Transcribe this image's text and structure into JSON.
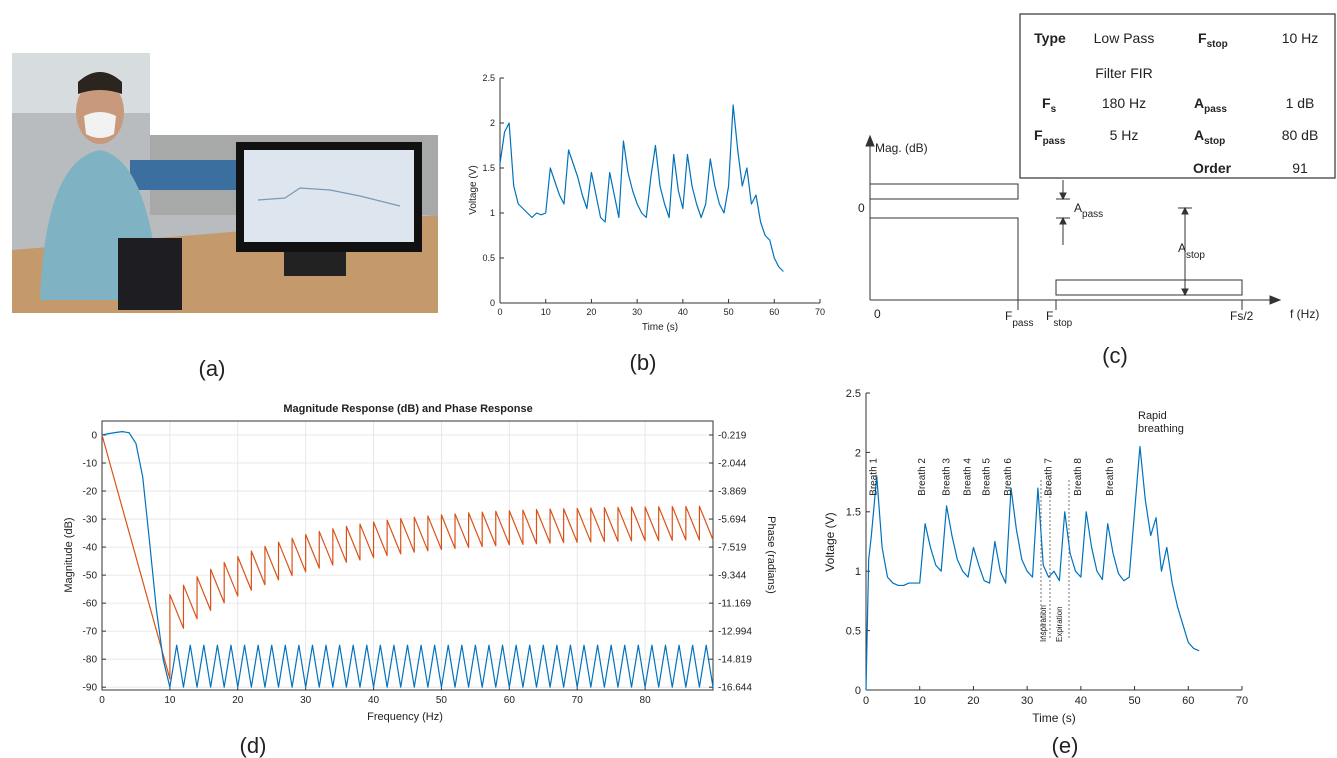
{
  "panel_labels": [
    "(a)",
    "(b)",
    "(c)",
    "(d)",
    "(e)"
  ],
  "filter_diagram": {
    "y_axis_label": "Mag. (dB)",
    "y_zero": "0",
    "x_zero": "0",
    "f_pass": {
      "text": "F",
      "sub": "pass"
    },
    "f_stop": {
      "text": "F",
      "sub": "stop"
    },
    "fs_half": "Fs/2",
    "x_axis_label": "f (Hz)",
    "a_pass": {
      "text": "A",
      "sub": "pass"
    },
    "a_stop": {
      "text": "A",
      "sub": "stop"
    }
  },
  "filter_table": [
    {
      "label": {
        "text": "Type"
      },
      "value": [
        "Low Pass",
        "Filter FIR"
      ],
      "label2": {
        "text": "F",
        "sub": "stop"
      },
      "value2": "10 Hz"
    },
    {
      "label": {
        "text": "F",
        "sub": "s"
      },
      "value": "180 Hz",
      "label2": {
        "text": "A",
        "sub": "pass"
      },
      "value2": "1 dB"
    },
    {
      "label": {
        "text": "F",
        "sub": "pass"
      },
      "value": "5 Hz",
      "label2": {
        "text": "A",
        "sub": "stop"
      },
      "value2": "80 dB"
    },
    {
      "label2": {
        "text": "Order"
      },
      "value2": "91"
    }
  ],
  "chart_data": [
    {
      "type": "line",
      "xlabel": "Time (s)",
      "ylabel": "Voltage (V)",
      "x": [
        0,
        1,
        2,
        3,
        4,
        5,
        6,
        7,
        8,
        9,
        10,
        11,
        12,
        13,
        14,
        15,
        16,
        17,
        18,
        19,
        20,
        21,
        22,
        23,
        24,
        25,
        26,
        27,
        28,
        29,
        30,
        31,
        32,
        33,
        34,
        35,
        36,
        37,
        38,
        39,
        40,
        41,
        42,
        43,
        44,
        45,
        46,
        47,
        48,
        49,
        50,
        51,
        52,
        53,
        54,
        55,
        56,
        57,
        58,
        59,
        60,
        61,
        62
      ],
      "series": [
        {
          "color": "#0072BD",
          "values": [
            1.55,
            1.9,
            2.0,
            1.3,
            1.1,
            1.05,
            1.0,
            0.95,
            1.0,
            0.98,
            1.0,
            1.5,
            1.35,
            1.2,
            1.1,
            1.7,
            1.55,
            1.4,
            1.2,
            1.05,
            1.45,
            1.2,
            0.95,
            0.9,
            1.45,
            1.2,
            0.95,
            1.8,
            1.45,
            1.25,
            1.1,
            1.0,
            0.95,
            1.4,
            1.75,
            1.3,
            1.1,
            0.95,
            1.65,
            1.25,
            1.05,
            1.65,
            1.3,
            1.1,
            0.95,
            1.1,
            1.6,
            1.3,
            1.1,
            1.0,
            1.3,
            2.2,
            1.7,
            1.3,
            1.5,
            1.1,
            1.2,
            0.9,
            0.75,
            0.7,
            0.5,
            0.4,
            0.35
          ]
        }
      ],
      "xlim": [
        0,
        70
      ],
      "ylim": [
        0,
        2.5
      ],
      "xticks": [
        0,
        10,
        20,
        30,
        40,
        50,
        60,
        70
      ],
      "yticks": [
        0,
        0.5,
        1,
        1.5,
        2,
        2.5
      ],
      "grid": false,
      "box": false
    },
    {
      "type": "line",
      "title": "Magnitude Response (dB) and Phase Response",
      "xlabel": "Frequency (Hz)",
      "ylabel": "Magnitude (dB)",
      "y2label": "Phase (radians)",
      "series": [
        {
          "color": "#D95319",
          "axis": "y2",
          "x": [
            0,
            10,
            10,
            12,
            12,
            14,
            14,
            16,
            16,
            18,
            18,
            20,
            20,
            22,
            22,
            24,
            24,
            26,
            26,
            28,
            28,
            30,
            30,
            32,
            32,
            34,
            34,
            36,
            36,
            38,
            38,
            40,
            40,
            42,
            42,
            44,
            44,
            46,
            46,
            48,
            48,
            50,
            50,
            52,
            52,
            54,
            54,
            56,
            56,
            58,
            58,
            60,
            60,
            62,
            62,
            64,
            64,
            66,
            66,
            68,
            68,
            70,
            70,
            72,
            72,
            74,
            74,
            76,
            76,
            78,
            78,
            80,
            80,
            82,
            82,
            84,
            84,
            86,
            86,
            88,
            88,
            90
          ],
          "values": [
            -0.219,
            -16.1,
            -10.62,
            -12.81,
            -10.0,
            -12.19,
            -9.45,
            -11.64,
            -8.96,
            -11.15,
            -8.52,
            -10.71,
            -8.14,
            -10.33,
            -7.78,
            -9.97,
            -7.47,
            -9.66,
            -7.19,
            -9.38,
            -6.94,
            -9.13,
            -6.7,
            -8.89,
            -6.5,
            -8.69,
            -6.32,
            -8.51,
            -6.17,
            -8.36,
            -6.02,
            -8.21,
            -5.88,
            -8.07,
            -5.77,
            -7.96,
            -5.66,
            -7.85,
            -5.57,
            -7.76,
            -5.49,
            -7.68,
            -5.42,
            -7.61,
            -5.35,
            -7.54,
            -5.29,
            -7.48,
            -5.24,
            -7.43,
            -5.18,
            -7.37,
            -5.15,
            -7.34,
            -5.11,
            -7.3,
            -5.07,
            -7.26,
            -5.04,
            -7.23,
            -5.02,
            -7.21,
            -5.0,
            -7.19,
            -4.97,
            -7.16,
            -4.95,
            -7.14,
            -4.93,
            -7.12,
            -4.91,
            -7.1,
            -4.91,
            -7.1,
            -4.89,
            -7.08,
            -4.87,
            -7.06,
            -4.87,
            -7.06,
            -4.86,
            -7.05
          ]
        },
        {
          "color": "#0072BD",
          "x": [
            0,
            1,
            2,
            3,
            4,
            5,
            6,
            7,
            8,
            9,
            10,
            11,
            12,
            13,
            14,
            15,
            16,
            17,
            18,
            19,
            20,
            21,
            22,
            23,
            24,
            25,
            26,
            27,
            28,
            29,
            30,
            31,
            32,
            33,
            34,
            35,
            36,
            37,
            38,
            39,
            40,
            41,
            42,
            43,
            44,
            45,
            46,
            47,
            48,
            49,
            50,
            51,
            52,
            53,
            54,
            55,
            56,
            57,
            58,
            59,
            60,
            61,
            62,
            63,
            64,
            65,
            66,
            67,
            68,
            69,
            70,
            71,
            72,
            73,
            74,
            75,
            76,
            77,
            78,
            79,
            80,
            81,
            82,
            83,
            84,
            85,
            86,
            87,
            88,
            89,
            90
          ],
          "values": [
            0,
            0.5,
            0.9,
            1.2,
            0.8,
            -3,
            -15,
            -38,
            -62,
            -80,
            -90,
            -75,
            -90,
            -75,
            -90,
            -75,
            -90,
            -75,
            -90,
            -75,
            -90,
            -75,
            -90,
            -75,
            -90,
            -75,
            -90,
            -75,
            -90,
            -75,
            -90,
            -75,
            -90,
            -75,
            -90,
            -75,
            -90,
            -75,
            -90,
            -75,
            -90,
            -75,
            -90,
            -75,
            -90,
            -75,
            -90,
            -75,
            -90,
            -75,
            -90,
            -75,
            -90,
            -75,
            -90,
            -75,
            -90,
            -75,
            -90,
            -75,
            -90,
            -75,
            -90,
            -75,
            -90,
            -75,
            -90,
            -75,
            -90,
            -75,
            -90,
            -75,
            -90,
            -75,
            -90,
            -75,
            -90,
            -75,
            -90,
            -75,
            -90,
            -75,
            -90,
            -75,
            -90,
            -75,
            -90,
            -75,
            -90,
            -75,
            -90
          ]
        }
      ],
      "xlim": [
        0,
        90
      ],
      "ylim": [
        -91,
        5
      ],
      "y2lim": [
        -16.827,
        0.6935
      ],
      "xticks": [
        0,
        10,
        20,
        30,
        40,
        50,
        60,
        70,
        80
      ],
      "yticks": [
        0,
        -10,
        -20,
        -30,
        -40,
        -50,
        -60,
        -70,
        -80,
        -90
      ],
      "y2ticks": [
        -0.219,
        -2.044,
        -3.869,
        -5.694,
        -7.519,
        -9.344,
        -11.169,
        -12.994,
        -14.819,
        -16.644
      ],
      "grid": true,
      "box": true
    },
    {
      "type": "line",
      "xlabel": "Time (s)",
      "ylabel": "Voltage (V)",
      "x": [
        0,
        0.5,
        1,
        2,
        3,
        4,
        5,
        6,
        7,
        8,
        9,
        10,
        11,
        12,
        13,
        14,
        15,
        16,
        17,
        18,
        19,
        20,
        21,
        22,
        23,
        24,
        25,
        26,
        27,
        28,
        29,
        30,
        31,
        32,
        33,
        34,
        35,
        36,
        37,
        38,
        39,
        40,
        41,
        42,
        43,
        44,
        45,
        46,
        47,
        48,
        49,
        50,
        51,
        52,
        53,
        54,
        55,
        56,
        57,
        58,
        59,
        60,
        61,
        62
      ],
      "series": [
        {
          "color": "#0072BD",
          "values": [
            0,
            1.1,
            1.3,
            1.8,
            1.2,
            0.95,
            0.9,
            0.88,
            0.88,
            0.9,
            0.9,
            0.9,
            1.4,
            1.2,
            1.05,
            1.0,
            1.55,
            1.3,
            1.1,
            1.0,
            0.95,
            1.2,
            1.05,
            0.92,
            0.9,
            1.25,
            1.0,
            0.9,
            1.7,
            1.35,
            1.1,
            1.0,
            0.95,
            1.7,
            1.05,
            0.95,
            1.0,
            0.92,
            1.5,
            1.15,
            1.0,
            0.95,
            1.5,
            1.2,
            1.0,
            0.93,
            1.4,
            1.15,
            0.98,
            0.92,
            0.95,
            1.5,
            2.05,
            1.6,
            1.3,
            1.45,
            1.0,
            1.2,
            0.9,
            0.7,
            0.55,
            0.4,
            0.35,
            0.33
          ]
        }
      ],
      "xlim": [
        0,
        70
      ],
      "ylim": [
        0,
        2.5
      ],
      "xticks": [
        0,
        10,
        20,
        30,
        40,
        50,
        60,
        70
      ],
      "yticks": [
        0,
        0.5,
        1,
        1.5,
        2,
        2.5
      ],
      "grid": false,
      "box": false,
      "annotations": [
        "Breath 1",
        "Breath 2",
        "Breath 3",
        "Breath 4",
        "Breath 5",
        "Breath 6",
        "Breath 7",
        "Breath 8",
        "Breath 9",
        "Rapid breathing",
        "Inspiration",
        "Expiration"
      ]
    }
  ]
}
